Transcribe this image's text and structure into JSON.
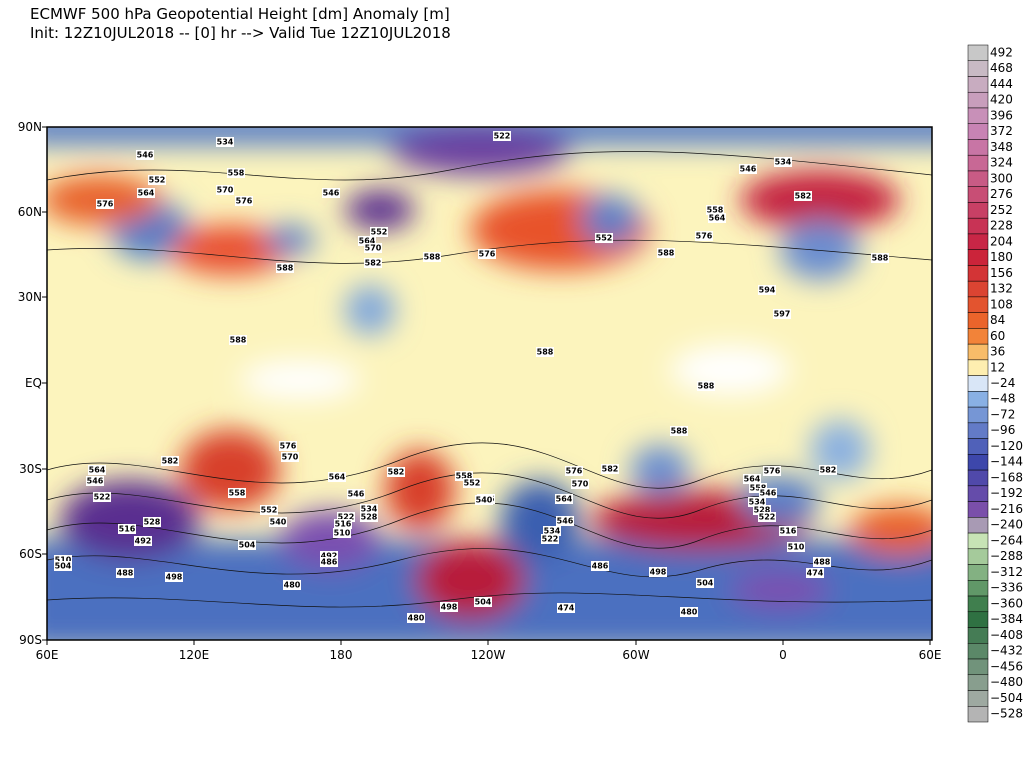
{
  "header": {
    "title": "ECMWF 500 hPa Geopotential Height [dm] Anomaly [m]",
    "subtitle": "Init: 12Z10JUL2018 -- [0] hr --> Valid Tue 12Z10JUL2018"
  },
  "map": {
    "lat_labels": [
      "90N",
      "60N",
      "30N",
      "EQ",
      "30S",
      "60S",
      "90S"
    ],
    "lon_labels": [
      "60E",
      "120E",
      "180",
      "120W",
      "60W",
      "0",
      "60E"
    ],
    "contour_labels": [
      "534",
      "522",
      "546",
      "552",
      "558",
      "564",
      "570",
      "576",
      "576",
      "546",
      "552",
      "564",
      "570",
      "582",
      "588",
      "588",
      "576",
      "552",
      "558",
      "564",
      "576",
      "588",
      "534",
      "546",
      "582",
      "594",
      "597",
      "588",
      "588",
      "588",
      "588",
      "588",
      "582",
      "576",
      "570",
      "564",
      "558",
      "552",
      "546",
      "534",
      "528",
      "522",
      "516",
      "510",
      "504",
      "492",
      "486",
      "480",
      "564",
      "546",
      "522",
      "516",
      "528",
      "492",
      "510",
      "504",
      "488",
      "498",
      "582",
      "558",
      "552",
      "546",
      "564",
      "576",
      "570",
      "582",
      "546",
      "534",
      "522",
      "486",
      "498",
      "504",
      "480",
      "474",
      "498",
      "504",
      "480",
      "576",
      "564",
      "558",
      "546",
      "534",
      "528",
      "522",
      "516",
      "510",
      "488",
      "474",
      "582",
      "540",
      "540"
    ]
  },
  "colorbar": {
    "labels": [
      "492",
      "468",
      "444",
      "420",
      "396",
      "372",
      "348",
      "324",
      "300",
      "276",
      "252",
      "228",
      "204",
      "180",
      "156",
      "132",
      "108",
      "84",
      "60",
      "36",
      "12",
      "−24",
      "−48",
      "−72",
      "−96",
      "−120",
      "−144",
      "−168",
      "−192",
      "−216",
      "−240",
      "−264",
      "−288",
      "−312",
      "−336",
      "−360",
      "−384",
      "−408",
      "−432",
      "−456",
      "−480",
      "−504",
      "−528"
    ]
  }
}
